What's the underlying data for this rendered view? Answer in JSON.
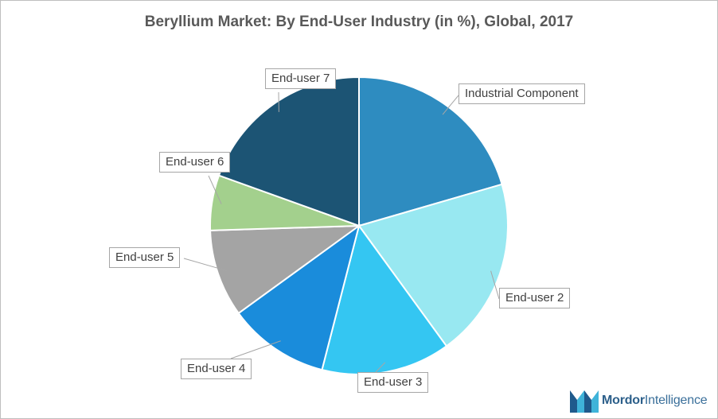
{
  "title": "Beryllium Market: By End-User Industry (in %), Global, 2017",
  "brand": {
    "name_bold": "Mordor",
    "name_light": "Intelligence",
    "logo_icon": "mordor-intelligence-logo-icon"
  },
  "chart_data": {
    "type": "pie",
    "categories": [
      "Industrial Component",
      "End-user 2",
      "End-user 3",
      "End-user 4",
      "End-user 5",
      "End-user 6",
      "End-user 7"
    ],
    "values": [
      20.5,
      19.5,
      14,
      11,
      9.5,
      6,
      19.5
    ],
    "colors": [
      "#2e8cc0",
      "#98e8f1",
      "#34c6f2",
      "#1a8cdb",
      "#a4a4a4",
      "#a3d08d",
      "#1c5474"
    ],
    "start_angle_deg": 0,
    "direction": "clockwise",
    "labels_shown": true,
    "legend": "none"
  }
}
